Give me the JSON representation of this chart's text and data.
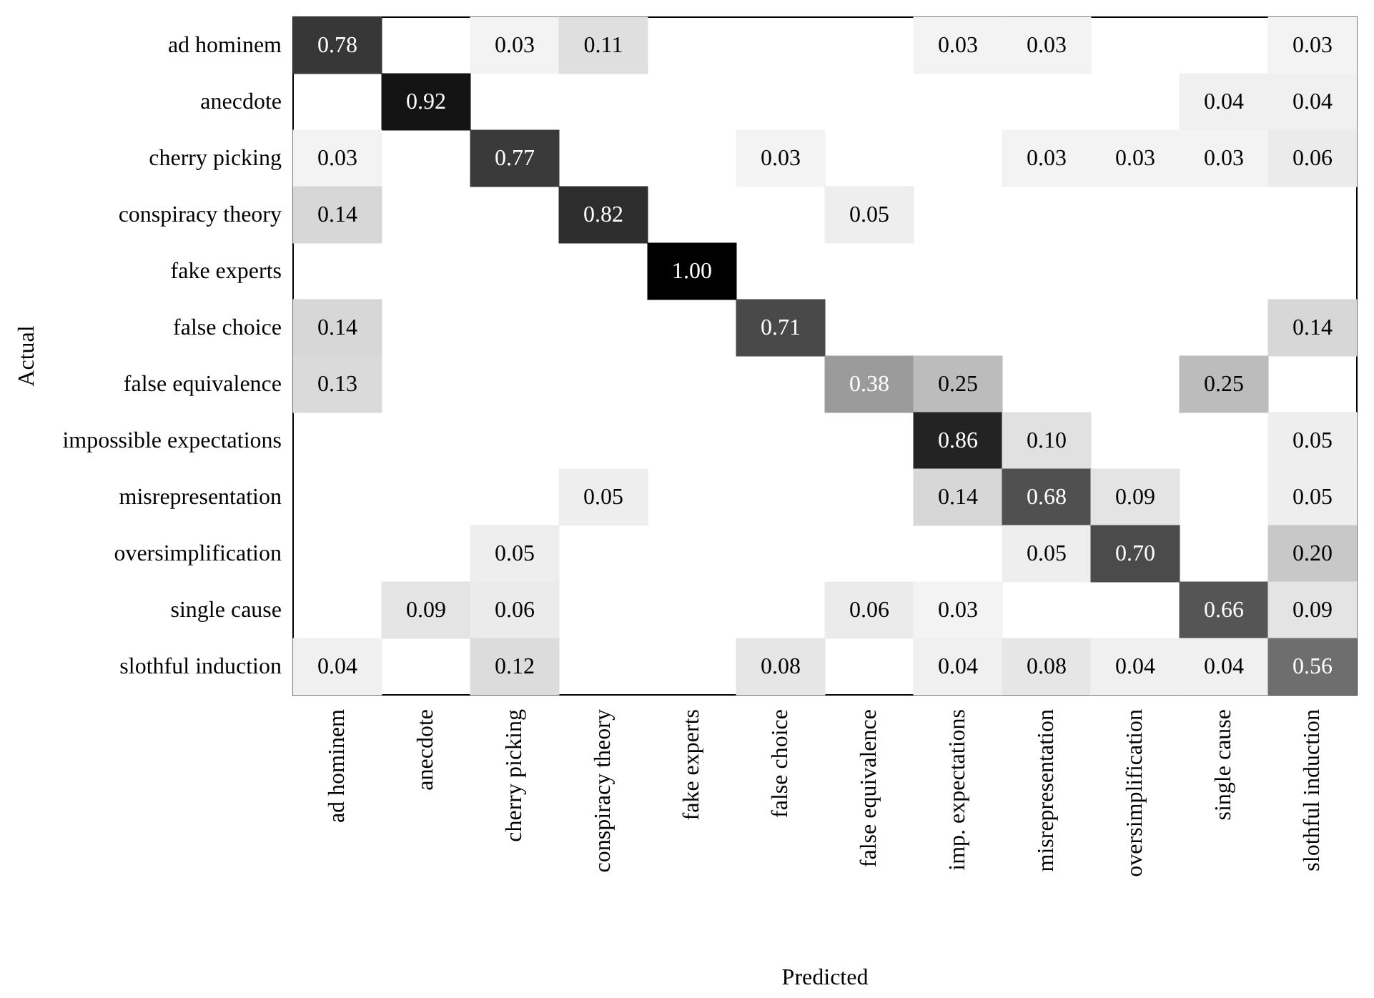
{
  "chart_data": {
    "type": "heatmap",
    "xlabel": "Predicted",
    "ylabel": "Actual",
    "categories": [
      "ad hominem",
      "anecdote",
      "cherry picking",
      "conspiracy theory",
      "fake experts",
      "false choice",
      "false equivalence",
      "imp. expectations",
      "misrepresentation",
      "oversimplification",
      "single cause",
      "slothful induction"
    ],
    "y_categories": [
      "ad hominem",
      "anecdote",
      "cherry picking",
      "conspiracy theory",
      "fake experts",
      "false choice",
      "false equivalence",
      "impossible expectations",
      "misrepresentation",
      "oversimplification",
      "single cause",
      "slothful induction"
    ],
    "cells": [
      [
        0.78,
        null,
        0.03,
        0.11,
        null,
        null,
        null,
        0.03,
        0.03,
        null,
        null,
        0.03
      ],
      [
        null,
        0.92,
        null,
        null,
        null,
        null,
        null,
        null,
        null,
        null,
        0.04,
        0.04
      ],
      [
        0.03,
        null,
        0.77,
        null,
        null,
        0.03,
        null,
        null,
        0.03,
        0.03,
        0.03,
        0.06
      ],
      [
        0.14,
        null,
        null,
        0.82,
        null,
        null,
        0.05,
        null,
        null,
        null,
        null,
        null
      ],
      [
        null,
        null,
        null,
        null,
        1.0,
        null,
        null,
        null,
        null,
        null,
        null,
        null
      ],
      [
        0.14,
        null,
        null,
        null,
        null,
        0.71,
        null,
        null,
        null,
        null,
        null,
        0.14
      ],
      [
        0.13,
        null,
        null,
        null,
        null,
        null,
        0.38,
        0.25,
        null,
        null,
        0.25,
        null
      ],
      [
        null,
        null,
        null,
        null,
        null,
        null,
        null,
        0.86,
        0.1,
        null,
        null,
        0.05
      ],
      [
        null,
        null,
        null,
        0.05,
        null,
        null,
        null,
        0.14,
        0.68,
        0.09,
        null,
        0.05
      ],
      [
        null,
        null,
        0.05,
        null,
        null,
        null,
        null,
        null,
        0.05,
        0.7,
        null,
        0.2
      ],
      [
        null,
        0.09,
        0.06,
        null,
        null,
        null,
        0.06,
        0.03,
        null,
        null,
        0.66,
        0.09
      ],
      [
        0.04,
        null,
        0.12,
        null,
        null,
        0.08,
        null,
        0.04,
        0.08,
        0.04,
        0.04,
        0.56
      ]
    ],
    "cell_labels": [
      [
        "0.78",
        null,
        "0.03",
        "0.11",
        null,
        null,
        null,
        "0.03",
        "0.03",
        null,
        null,
        "0.03"
      ],
      [
        null,
        "0.92",
        null,
        null,
        null,
        null,
        null,
        null,
        null,
        null,
        "0.04",
        "0.04"
      ],
      [
        "0.03",
        null,
        "0.77",
        null,
        null,
        "0.03",
        null,
        null,
        "0.03",
        "0.03",
        "0.03",
        "0.06"
      ],
      [
        "0.14",
        null,
        null,
        "0.82",
        null,
        null,
        "0.05",
        null,
        null,
        null,
        null,
        null
      ],
      [
        null,
        null,
        null,
        null,
        "1.00",
        null,
        null,
        null,
        null,
        null,
        null,
        null
      ],
      [
        "0.14",
        null,
        null,
        null,
        null,
        "0.71",
        null,
        null,
        null,
        null,
        null,
        "0.14"
      ],
      [
        "0.13",
        null,
        null,
        null,
        null,
        null,
        "0.38",
        "0.25",
        null,
        null,
        "0.25",
        null
      ],
      [
        null,
        null,
        null,
        null,
        null,
        null,
        null,
        "0.86",
        "0.10",
        null,
        null,
        "0.05"
      ],
      [
        null,
        null,
        null,
        "0.05",
        null,
        null,
        null,
        "0.14",
        "0.68",
        "0.09",
        null,
        "0.05"
      ],
      [
        null,
        null,
        "0.05",
        null,
        null,
        null,
        null,
        null,
        "0.05",
        "0.70",
        null,
        "0.20"
      ],
      [
        null,
        "0.09",
        "0.06",
        null,
        null,
        null,
        "0.06",
        "0.03",
        null,
        null,
        "0.66",
        "0.09"
      ],
      [
        "0.04",
        null,
        "0.12",
        null,
        null,
        "0.08",
        null,
        "0.04",
        "0.08",
        "0.04",
        "0.04",
        "0.56"
      ]
    ]
  }
}
